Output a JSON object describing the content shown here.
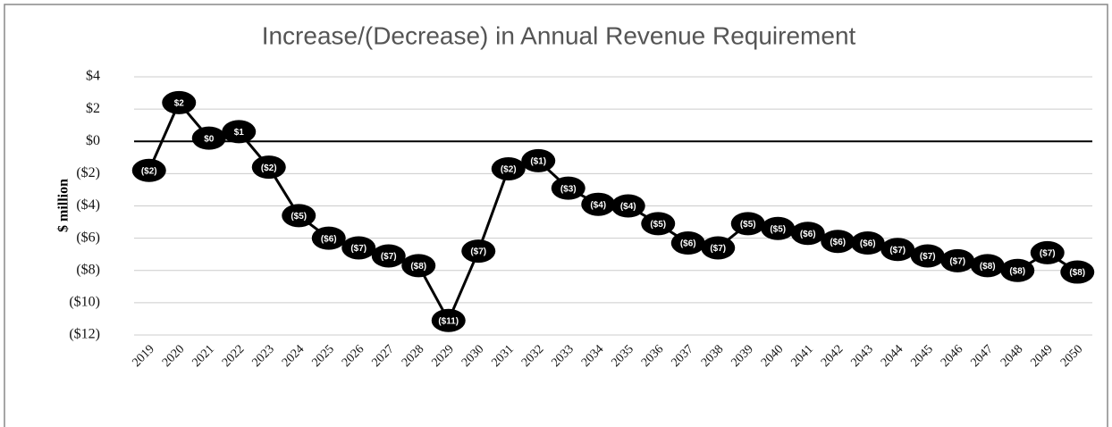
{
  "chart_data": {
    "type": "line",
    "title": "Increase/(Decrease) in Annual Revenue Requirement",
    "y_label": "$ million",
    "categories": [
      "2019",
      "2020",
      "2021",
      "2022",
      "2023",
      "2024",
      "2025",
      "2026",
      "2027",
      "2028",
      "2029",
      "2030",
      "2031",
      "2032",
      "2033",
      "2034",
      "2035",
      "2036",
      "2037",
      "2038",
      "2039",
      "2040",
      "2041",
      "2042",
      "2043",
      "2044",
      "2045",
      "2046",
      "2047",
      "2048",
      "2049",
      "2050"
    ],
    "series": [
      {
        "name": "Increase/(Decrease)",
        "color": "#000000",
        "values": [
          -1.8,
          2.4,
          0.2,
          0.6,
          -1.6,
          -4.6,
          -6.0,
          -6.6,
          -7.1,
          -7.7,
          -11.1,
          -6.8,
          -1.7,
          -1.2,
          -2.9,
          -3.9,
          -4.0,
          -5.1,
          -6.3,
          -6.6,
          -5.1,
          -5.4,
          -5.7,
          -6.2,
          -6.3,
          -6.7,
          -7.1,
          -7.4,
          -7.7,
          -8.0,
          -6.9,
          -8.1
        ],
        "value_labels": [
          "($2)",
          "$2",
          "$0",
          "$1",
          "($2)",
          "($5)",
          "($6)",
          "($7)",
          "($7)",
          "($8)",
          "($11)",
          "($7)",
          "($2)",
          "($1)",
          "($3)",
          "($4)",
          "($4)",
          "($5)",
          "($6)",
          "($7)",
          "($5)",
          "($5)",
          "($6)",
          "($6)",
          "($6)",
          "($7)",
          "($7)",
          "($7)",
          "($8)",
          "($8)",
          "($7)",
          "($8)"
        ]
      }
    ],
    "ylim": [
      -12,
      4
    ],
    "yticks": [
      {
        "value": 4,
        "label": "$4"
      },
      {
        "value": 2,
        "label": "$2"
      },
      {
        "value": 0,
        "label": "$0"
      },
      {
        "value": -2,
        "label": "($2)"
      },
      {
        "value": -4,
        "label": "($4)"
      },
      {
        "value": -6,
        "label": "($6)"
      },
      {
        "value": -8,
        "label": "($8)"
      },
      {
        "value": -10,
        "label": "($10)"
      },
      {
        "value": -12,
        "label": "($12)"
      }
    ],
    "grid": true
  }
}
